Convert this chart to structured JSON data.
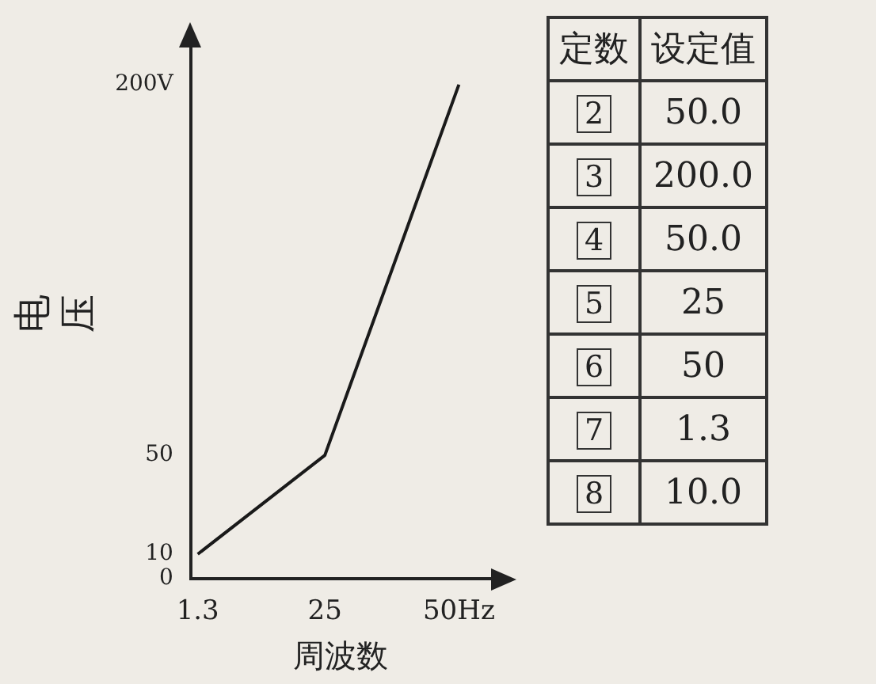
{
  "chart_data": {
    "type": "line",
    "xlabel": "周波数",
    "ylabel": "电压",
    "x": [
      1.3,
      25,
      50
    ],
    "series": [
      {
        "color": "#1a1a1a",
        "values": [
          10,
          50,
          200
        ]
      }
    ],
    "xlim": [
      0,
      56
    ],
    "ylim": [
      0,
      215
    ],
    "xticks": [
      1.3,
      25,
      {
        "value": 50,
        "label": "50Hz"
      }
    ],
    "yticks": [
      0,
      10,
      50,
      {
        "value": 200,
        "label": "200V"
      }
    ],
    "grid": false,
    "legend": false,
    "marker": "none",
    "line_style": "solid",
    "annotations": [
      "定数",
      "设定值",
      "2",
      "50.0",
      "3",
      "200.0",
      "4",
      "50.0",
      "5",
      "25",
      "6",
      "50",
      "7",
      "1.3",
      "8",
      "10.0"
    ]
  }
}
